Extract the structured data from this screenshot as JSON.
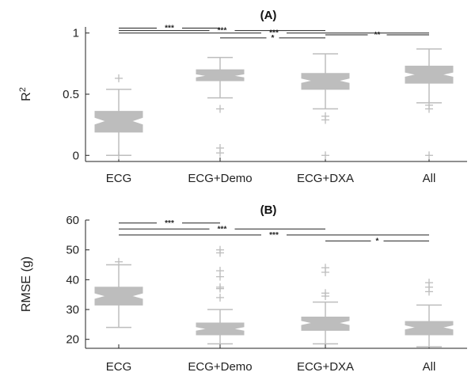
{
  "chart_data": [
    {
      "type": "box",
      "title": "(A)",
      "ylabel": "R",
      "ylabel_sup": "2",
      "xlabel": "",
      "categories": [
        "ECG",
        "ECG+Demo",
        "ECG+DXA",
        "All"
      ],
      "ylim": [
        -0.05,
        1.05
      ],
      "yticks": [
        0,
        0.5,
        1
      ],
      "ytick_labels": [
        "0",
        "0.5",
        "1"
      ],
      "box_color": "#bdbdbd",
      "boxes": [
        {
          "whisker_low": 0.0,
          "q1": 0.19,
          "median": 0.28,
          "q3": 0.36,
          "whisker_high": 0.54,
          "notch_low": 0.25,
          "notch_high": 0.31,
          "outliers": [
            0.63,
            0.0
          ]
        },
        {
          "whisker_low": 0.47,
          "q1": 0.61,
          "median": 0.65,
          "q3": 0.7,
          "whisker_high": 0.8,
          "notch_low": 0.635,
          "notch_high": 0.665,
          "outliers": [
            0.38,
            0.06,
            0.02
          ]
        },
        {
          "whisker_low": 0.38,
          "q1": 0.54,
          "median": 0.61,
          "q3": 0.67,
          "whisker_high": 0.83,
          "notch_low": 0.59,
          "notch_high": 0.63,
          "outliers": [
            0.32,
            0.29,
            0.0
          ]
        },
        {
          "whisker_low": 0.43,
          "q1": 0.59,
          "median": 0.66,
          "q3": 0.73,
          "whisker_high": 0.87,
          "notch_low": 0.64,
          "notch_high": 0.68,
          "outliers": [
            0.41,
            0.38,
            0.0
          ]
        }
      ],
      "significance": [
        {
          "from": 0,
          "to": 1,
          "label": "***",
          "y": 1.04
        },
        {
          "from": 0,
          "to": 2,
          "label": "***",
          "y": 1.02
        },
        {
          "from": 0,
          "to": 3,
          "label": "***",
          "y": 1.0
        },
        {
          "from": 2,
          "to": 3,
          "label": "**",
          "y": 0.985
        },
        {
          "from": 1,
          "to": 2,
          "label": "*",
          "y": 0.96
        }
      ]
    },
    {
      "type": "box",
      "title": "(B)",
      "ylabel": "RMSE (g)",
      "xlabel": "",
      "categories": [
        "ECG",
        "ECG+Demo",
        "ECG+DXA",
        "All"
      ],
      "ylim": [
        17,
        60
      ],
      "yticks": [
        20,
        30,
        40,
        50,
        60
      ],
      "ytick_labels": [
        "20",
        "30",
        "40",
        "50",
        "60"
      ],
      "box_color": "#bdbdbd",
      "boxes": [
        {
          "whisker_low": 24,
          "q1": 31.5,
          "median": 34.5,
          "q3": 37.5,
          "whisker_high": 45,
          "notch_low": 33.5,
          "notch_high": 35.5,
          "outliers": [
            46
          ]
        },
        {
          "whisker_low": 18.5,
          "q1": 21.5,
          "median": 23.5,
          "q3": 25.5,
          "whisker_high": 30,
          "notch_low": 22.8,
          "notch_high": 24.2,
          "outliers": [
            50,
            49,
            43,
            41,
            37.5,
            37,
            34
          ]
        },
        {
          "whisker_low": 18.5,
          "q1": 23,
          "median": 25.5,
          "q3": 27.5,
          "whisker_high": 32.5,
          "notch_low": 24.7,
          "notch_high": 26.3,
          "outliers": [
            44,
            42.5,
            35.5,
            34.5
          ]
        },
        {
          "whisker_low": 17.5,
          "q1": 21.5,
          "median": 24,
          "q3": 26,
          "whisker_high": 31.5,
          "notch_low": 23.2,
          "notch_high": 24.8,
          "outliers": [
            39,
            37.5,
            36
          ]
        }
      ],
      "significance": [
        {
          "from": 0,
          "to": 1,
          "label": "***",
          "y": 59
        },
        {
          "from": 0,
          "to": 2,
          "label": "***",
          "y": 57
        },
        {
          "from": 0,
          "to": 3,
          "label": "***",
          "y": 55
        },
        {
          "from": 2,
          "to": 3,
          "label": "*",
          "y": 53
        }
      ]
    }
  ]
}
